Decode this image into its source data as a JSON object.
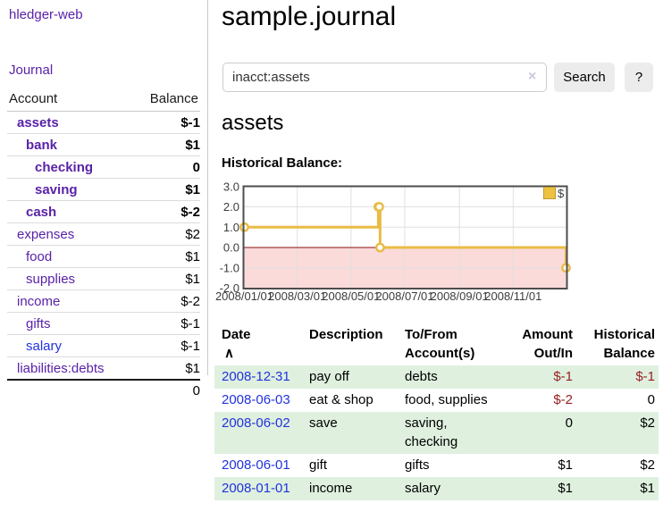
{
  "app": {
    "brand": "hledger-web"
  },
  "sidebar": {
    "journal_link": "Journal",
    "accounts_header": {
      "account": "Account",
      "balance": "Balance"
    },
    "accounts": [
      {
        "name": "assets",
        "indent": 1,
        "bold": true,
        "balance": "$-1",
        "neg": "strong"
      },
      {
        "name": "bank",
        "indent": 2,
        "bold": true,
        "balance": "$1"
      },
      {
        "name": "checking",
        "indent": 3,
        "bold": true,
        "balance": "0"
      },
      {
        "name": "saving",
        "indent": 3,
        "bold": true,
        "balance": "$1"
      },
      {
        "name": "cash",
        "indent": 2,
        "bold": true,
        "balance": "$-2",
        "neg": "strong"
      },
      {
        "name": "expenses",
        "indent": 1,
        "bold": false,
        "balance": "$2"
      },
      {
        "name": "food",
        "indent": 2,
        "bold": false,
        "balance": "$1"
      },
      {
        "name": "supplies",
        "indent": 2,
        "bold": false,
        "balance": "$1"
      },
      {
        "name": "income",
        "indent": 1,
        "bold": false,
        "balance": "$-2",
        "neg": "soft"
      },
      {
        "name": "gifts",
        "indent": 2,
        "bold": false,
        "balance": "$-1",
        "neg": "soft"
      },
      {
        "name": "salary",
        "indent": 2,
        "bold": false,
        "balance": "$-1",
        "neg": "soft",
        "link": "blue"
      },
      {
        "name": "liabilities:debts",
        "indent": 1,
        "bold": false,
        "balance": "$1"
      }
    ],
    "total": "0"
  },
  "header": {
    "title": "sample.journal"
  },
  "search": {
    "value": "inacct:assets",
    "clear_icon": "×",
    "button": "Search",
    "help": "?"
  },
  "account_page": {
    "title": "assets",
    "chart_label": "Historical Balance:"
  },
  "chart_data": {
    "type": "line",
    "step": true,
    "title": "Historical Balance:",
    "ylim": [
      -2,
      3
    ],
    "yticks": [
      {
        "label": "3.0",
        "value": 3
      },
      {
        "label": "2.0",
        "value": 2
      },
      {
        "label": "1.0",
        "value": 1
      },
      {
        "label": "0.0",
        "value": 0
      },
      {
        "label": "-1.0",
        "value": -1
      },
      {
        "label": "-2.0",
        "value": -2
      }
    ],
    "xticks": [
      {
        "label": "2008/01/01",
        "f": 0.0
      },
      {
        "label": "2008/03/01",
        "f": 0.1644
      },
      {
        "label": "2008/05/01",
        "f": 0.3315
      },
      {
        "label": "2008/07/01",
        "f": 0.4986
      },
      {
        "label": "2008/09/01",
        "f": 0.6685
      },
      {
        "label": "2008/11/01",
        "f": 0.8356
      }
    ],
    "series": [
      {
        "name": "$",
        "color": "#e8bc45",
        "points": [
          {
            "date": "2008-01-01",
            "f": 0.0,
            "value": 1
          },
          {
            "date": "2008-06-01",
            "f": 0.4164,
            "value": 2
          },
          {
            "date": "2008-06-02",
            "f": 0.4192,
            "value": 2
          },
          {
            "date": "2008-06-03",
            "f": 0.4219,
            "value": 0
          },
          {
            "date": "2008-12-31",
            "f": 1.0,
            "value": -1
          }
        ]
      }
    ],
    "legend": {
      "label": "$",
      "swatch": "#edc240",
      "position": "top-right"
    },
    "negative_region_fill": "#fbdada",
    "zero_line_color": "#8b0f0f",
    "grid_color": "#e0e0e0",
    "border_color": "#4d4d4d"
  },
  "register": {
    "columns": [
      {
        "l1": "Date",
        "l2": ""
      },
      {
        "l1": "Description",
        "l2": ""
      },
      {
        "l1": "To/From",
        "l2": "Account(s)"
      },
      {
        "l1": "Amount",
        "l2": "Out/In"
      },
      {
        "l1": "Historical",
        "l2": "Balance"
      }
    ],
    "sort_icon": "∧",
    "rows": [
      {
        "date": "2008-12-31",
        "description": "pay off",
        "accounts": "debts",
        "amount": "$-1",
        "amount_neg": true,
        "balance": "$-1",
        "balance_neg": true
      },
      {
        "date": "2008-06-03",
        "description": "eat & shop",
        "accounts": "food, supplies",
        "amount": "$-2",
        "amount_neg": true,
        "balance": "0",
        "balance_neg": false
      },
      {
        "date": "2008-06-02",
        "description": "save",
        "accounts": "saving,\nchecking",
        "amount": "0",
        "amount_neg": false,
        "balance": "$2",
        "balance_neg": false
      },
      {
        "date": "2008-06-01",
        "description": "gift",
        "accounts": "gifts",
        "amount": "$1",
        "amount_neg": false,
        "balance": "$2",
        "balance_neg": false
      },
      {
        "date": "2008-01-01",
        "description": "income",
        "accounts": "salary",
        "amount": "$1",
        "amount_neg": false,
        "balance": "$1",
        "balance_neg": false
      }
    ]
  },
  "colors": {
    "link_purple": "#5922a8",
    "link_blue": "#2233dd",
    "negative_strong": "#982020",
    "negative_soft": "#bd6b6b",
    "row_stripe_green": "#dff0df",
    "chart_line_gold": "#e8bc45"
  }
}
